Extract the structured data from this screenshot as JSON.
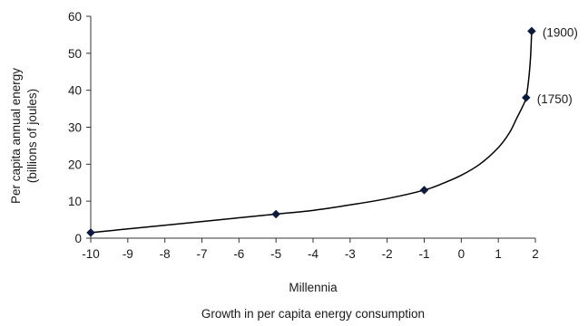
{
  "chart_data": {
    "type": "line",
    "title": "",
    "caption": "Growth in per capita energy consumption",
    "xlabel": "Millennia",
    "ylabel_lines": [
      "Per capita annual energy",
      "(billions of joules)"
    ],
    "xlim": [
      -10,
      2
    ],
    "ylim": [
      0,
      60
    ],
    "xticks": [
      -10,
      -9,
      -8,
      -7,
      -6,
      -5,
      -4,
      -3,
      -2,
      -1,
      0,
      1,
      2
    ],
    "yticks": [
      0,
      10,
      20,
      30,
      40,
      50,
      60
    ],
    "grid": false,
    "legend": "none",
    "series": [
      {
        "color": "#000000",
        "marker": "diamond",
        "marker_color": "#0d1a40",
        "x": [
          -10,
          -5,
          -1,
          1.75,
          1.9
        ],
        "y": [
          1.5,
          6.5,
          13,
          38,
          56
        ]
      }
    ],
    "curve": {
      "x": [
        -10,
        -8,
        -6,
        -5,
        -4,
        -3,
        -2,
        -1,
        -0.5,
        0,
        0.5,
        1,
        1.3,
        1.5,
        1.65,
        1.75,
        1.82,
        1.87,
        1.9
      ],
      "y": [
        1.5,
        3.5,
        5.5,
        6.5,
        7.5,
        9,
        10.7,
        13,
        14.8,
        17,
        20,
        24.5,
        28.5,
        32.5,
        35.5,
        38,
        43,
        49,
        56
      ]
    },
    "annotations": [
      {
        "text": "(1750)",
        "x": 1.75,
        "y": 38
      },
      {
        "text": "(1900)",
        "x": 1.9,
        "y": 56
      }
    ]
  }
}
